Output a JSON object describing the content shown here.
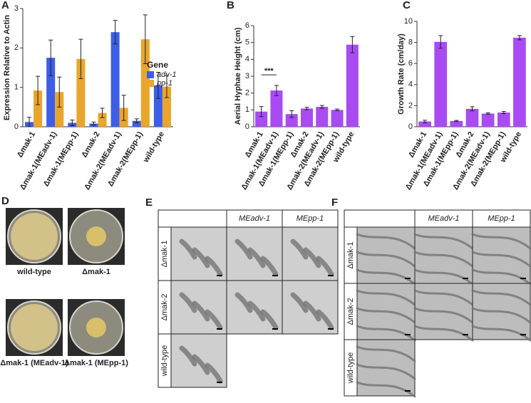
{
  "chart_data": [
    {
      "type": "bar",
      "panel": "A",
      "y_label": "Expression Relative to Actin",
      "legend_title": "Gene",
      "categories": [
        "Δmak-1",
        "Δmak-1(MEadv-1)",
        "Δmak-1(MEpp-1)",
        "Δmak-2",
        "Δmak-2(MEadv-1)",
        "Δmak-2(MEpp-1)",
        "wild-type"
      ],
      "series": [
        {
          "name": "adv-1",
          "color": "#3d5ee6",
          "values": [
            0.12,
            1.75,
            0.1,
            0.08,
            2.4,
            0.15,
            1.05
          ],
          "errors": [
            0.12,
            0.45,
            0.07,
            0.04,
            0.3,
            0.05,
            0.33
          ]
        },
        {
          "name": "pp-1",
          "color": "#eaa52c",
          "values": [
            0.92,
            0.88,
            1.72,
            0.35,
            0.48,
            2.22,
            1.02
          ],
          "errors": [
            0.36,
            0.38,
            0.5,
            0.12,
            0.32,
            0.62,
            0.28
          ]
        }
      ],
      "ylim": [
        0,
        3
      ],
      "yticks": [
        0,
        1,
        2,
        3
      ]
    },
    {
      "type": "bar",
      "panel": "B",
      "y_label": "Aerial Hyphae Height (cm)",
      "annotation": "***",
      "categories": [
        "Δmak-1",
        "Δmak-1(MEadv-1)",
        "Δmak-1(MEpp-1)",
        "Δmak-2",
        "Δmak-2(MEadv-1)",
        "Δmak-2(MEpp-1)",
        "wild-type"
      ],
      "series": [
        {
          "color": "#a84cf2",
          "values": [
            0.9,
            2.15,
            0.75,
            1.08,
            1.18,
            1.0,
            4.87
          ],
          "errors": [
            0.3,
            0.3,
            0.2,
            0.07,
            0.08,
            0.05,
            0.48
          ]
        }
      ],
      "ylim": [
        0,
        6
      ],
      "yticks": [
        0,
        1,
        2,
        3,
        4,
        5,
        6
      ]
    },
    {
      "type": "bar",
      "panel": "C",
      "y_label": "Growth Rate (cm/day)",
      "categories": [
        "Δmak-1",
        "Δmak-1(MEadv-1)",
        "Δmak-1(MEpp-1)",
        "Δmak-2",
        "Δmak-2(MEadv-1)",
        "Δmak-2(MEpp-1)",
        "wild-type"
      ],
      "series": [
        {
          "color": "#a84cf2",
          "values": [
            0.5,
            8.05,
            0.55,
            1.7,
            1.25,
            1.35,
            8.45
          ],
          "errors": [
            0.12,
            0.6,
            0.05,
            0.2,
            0.07,
            0.1,
            0.2
          ]
        }
      ],
      "ylim": [
        0,
        10
      ],
      "yticks": [
        0,
        2,
        4,
        6,
        8,
        10
      ]
    }
  ],
  "panel_d": {
    "label": "D",
    "plates": [
      "wild-type",
      "Δmak-1",
      "Δmak-1 (MEadv-1)",
      "Δmak-1 (MEpp-1)"
    ]
  },
  "panel_e": {
    "label": "E",
    "columns": [
      "MEadv-1",
      "MEpp-1"
    ],
    "rows": [
      "Δmak-1",
      "Δmak-2",
      "wild-type"
    ]
  },
  "panel_f": {
    "label": "F",
    "columns": [
      "MEadv-1",
      "MEpp-1"
    ],
    "rows": [
      "Δmak-1",
      "Δmak-2",
      "wild-type"
    ]
  }
}
